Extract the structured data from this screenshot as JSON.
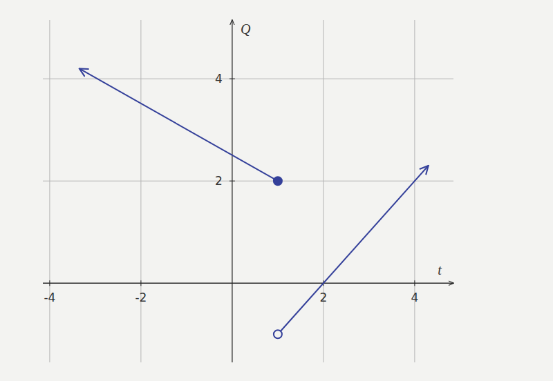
{
  "chart_data": {
    "type": "line",
    "x_label": "t",
    "y_label": "Q",
    "xlim": [
      -4.15,
      4.85
    ],
    "ylim": [
      -1.55,
      5.15
    ],
    "xticks": [
      -4,
      -2,
      2,
      4
    ],
    "yticks": [
      2,
      4
    ],
    "grid": true,
    "series": [
      {
        "x": [
          1,
          -3.35
        ],
        "values": [
          2,
          4.2
        ],
        "color": "#34409a",
        "marker": "circle",
        "line_style": "solid"
      },
      {
        "x": [
          1,
          4.3
        ],
        "values": [
          -1,
          2.3
        ],
        "color": "#34409a",
        "marker": "open_circle",
        "line_style": "solid"
      }
    ]
  }
}
